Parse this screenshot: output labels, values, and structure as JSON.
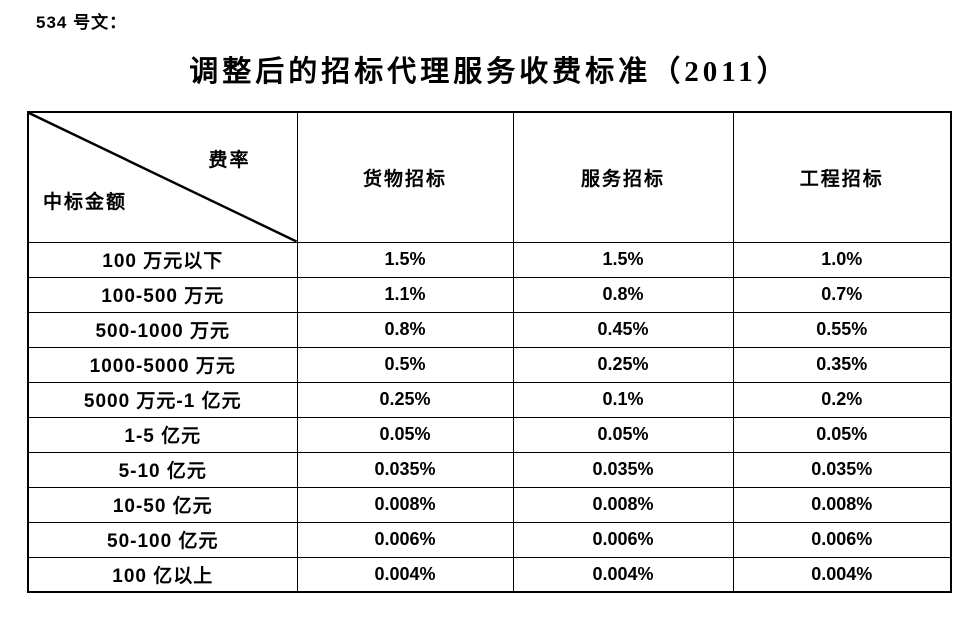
{
  "doc": {
    "label": "534 号文：",
    "title": "调整后的招标代理服务收费标准（2011）"
  },
  "colors": {
    "text": "#000000",
    "background": "#ffffff",
    "border": "#000000"
  },
  "table": {
    "corner": {
      "top_right": "费率",
      "bottom_left": "中标金额"
    },
    "columns": [
      "货物招标",
      "服务招标",
      "工程招标"
    ],
    "rows": [
      {
        "amount": "100 万元以下",
        "values": [
          "1.5%",
          "1.5%",
          "1.0%"
        ]
      },
      {
        "amount": "100-500 万元",
        "values": [
          "1.1%",
          "0.8%",
          "0.7%"
        ]
      },
      {
        "amount": "500-1000 万元",
        "values": [
          "0.8%",
          "0.45%",
          "0.55%"
        ]
      },
      {
        "amount": "1000-5000 万元",
        "values": [
          "0.5%",
          "0.25%",
          "0.35%"
        ]
      },
      {
        "amount": "5000 万元-1 亿元",
        "values": [
          "0.25%",
          "0.1%",
          "0.2%"
        ]
      },
      {
        "amount": "1-5 亿元",
        "values": [
          "0.05%",
          "0.05%",
          "0.05%"
        ]
      },
      {
        "amount": "5-10 亿元",
        "values": [
          "0.035%",
          "0.035%",
          "0.035%"
        ]
      },
      {
        "amount": "10-50 亿元",
        "values": [
          "0.008%",
          "0.008%",
          "0.008%"
        ]
      },
      {
        "amount": "50-100 亿元",
        "values": [
          "0.006%",
          "0.006%",
          "0.006%"
        ]
      },
      {
        "amount": "100 亿以上",
        "values": [
          "0.004%",
          "0.004%",
          "0.004%"
        ]
      }
    ]
  }
}
